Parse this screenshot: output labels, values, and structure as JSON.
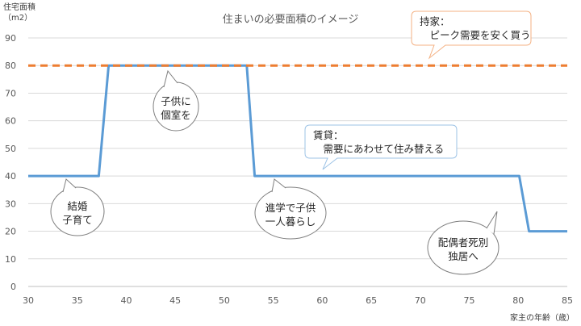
{
  "chart_data": {
    "type": "line",
    "title": "住まいの必要面積のイメージ",
    "ylabel_line1": "住宅面積",
    "ylabel_line2": "（m2）",
    "xlabel": "家主の年齢（歳）",
    "xlim": [
      30,
      85
    ],
    "ylim": [
      0,
      90
    ],
    "xticks": [
      "30",
      "35",
      "40",
      "45",
      "50",
      "55",
      "60",
      "65",
      "70",
      "75",
      "80",
      "85"
    ],
    "yticks": [
      "0",
      "10",
      "20",
      "30",
      "40",
      "50",
      "60",
      "70",
      "80",
      "90"
    ],
    "grid": "horizontal",
    "series": [
      {
        "style": "solid",
        "color": "#5b9bd5",
        "points": [
          [
            30,
            40
          ],
          [
            37.2,
            40
          ],
          [
            38.2,
            80
          ],
          [
            52.3,
            80
          ],
          [
            53.1,
            40
          ],
          [
            80.1,
            40
          ],
          [
            81.1,
            20
          ],
          [
            85,
            20
          ]
        ]
      },
      {
        "style": "dashed",
        "color": "#ed7d31",
        "points": [
          [
            30,
            80
          ],
          [
            85,
            80
          ]
        ]
      }
    ],
    "annotations": [
      {
        "lines": [
          "持家：",
          "　ピーク需要を安く買う"
        ],
        "shape": "rounded-rect",
        "border": "#f4b183"
      },
      {
        "lines": [
          "賃貸：",
          "　需要にあわせて住み替える"
        ],
        "shape": "rounded-rect",
        "border": "#9dc3e6"
      },
      {
        "lines": [
          "子供に",
          "個室を"
        ],
        "shape": "ellipse",
        "border": "#7f7f7f"
      },
      {
        "lines": [
          "結婚",
          "子育て"
        ],
        "shape": "ellipse",
        "border": "#7f7f7f"
      },
      {
        "lines": [
          "進学で子供",
          "一人暮らし"
        ],
        "shape": "ellipse",
        "border": "#7f7f7f"
      },
      {
        "lines": [
          "配偶者死別",
          "独居へ"
        ],
        "shape": "ellipse",
        "border": "#7f7f7f"
      }
    ]
  }
}
